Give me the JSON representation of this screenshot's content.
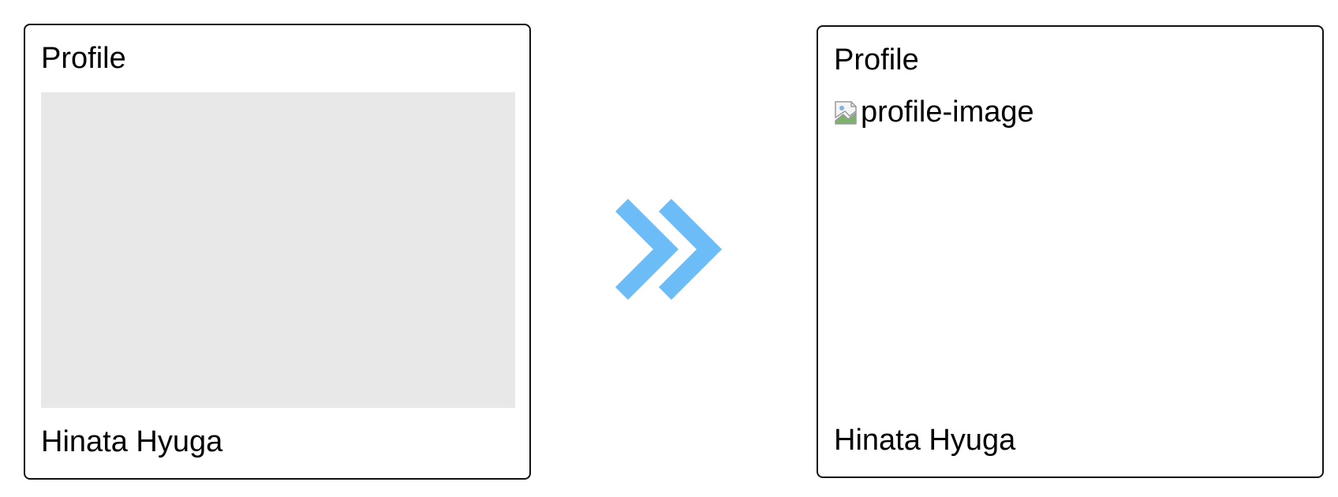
{
  "left_card": {
    "title": "Profile",
    "name": "Hinata Hyuga"
  },
  "arrow": {
    "icon": "double-chevron-right-icon",
    "color": "#6bbcf7"
  },
  "right_card": {
    "title": "Profile",
    "image_alt": "profile-image",
    "image_icon": "broken-image-icon",
    "name": "Hinata Hyuga"
  },
  "colors": {
    "placeholder": "#e8e8e8",
    "border": "#111111"
  }
}
